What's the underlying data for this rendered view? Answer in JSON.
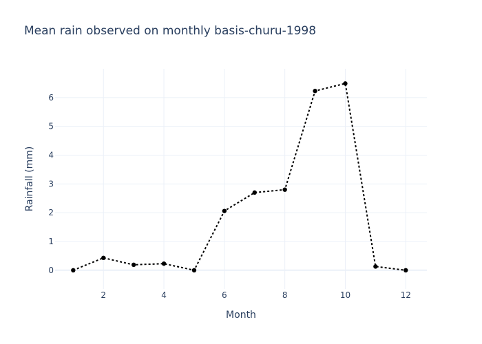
{
  "chart_data": {
    "type": "line",
    "title": "Mean rain observed on monthly basis-churu-1998",
    "xlabel": "Month",
    "ylabel": "Rainfall (mm)",
    "x": [
      1,
      2,
      3,
      4,
      5,
      6,
      7,
      8,
      9,
      10,
      11,
      12
    ],
    "series": [
      {
        "values": [
          0.0,
          0.43,
          0.19,
          0.23,
          0.0,
          2.06,
          2.7,
          2.8,
          6.23,
          6.49,
          0.13,
          0.0
        ]
      }
    ],
    "xlim": [
      0.4,
      12.7
    ],
    "ylim": [
      -0.65,
      7.0
    ],
    "xticks": [
      2,
      4,
      6,
      8,
      10,
      12
    ],
    "yticks": [
      0,
      1,
      2,
      3,
      4,
      5,
      6
    ],
    "grid": true,
    "line_color": "#000000",
    "line_style": "dotted"
  }
}
